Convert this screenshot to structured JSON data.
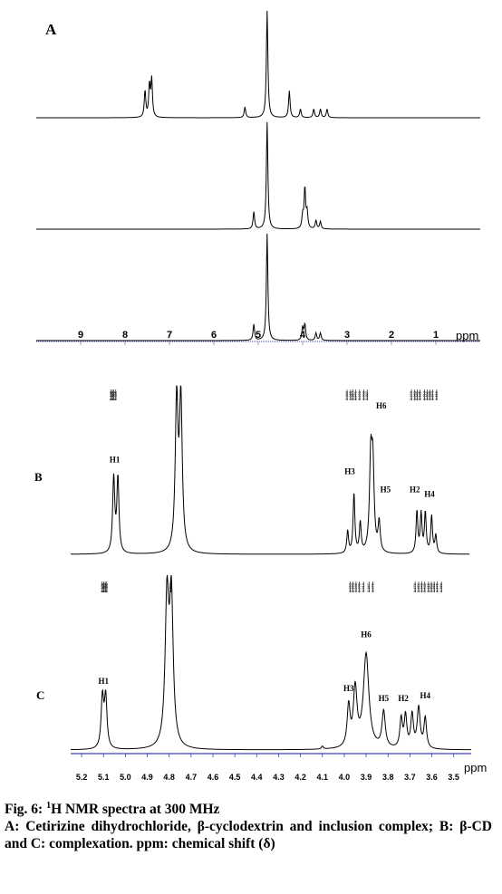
{
  "chart_data": [
    {
      "type": "line",
      "panel": "A",
      "xlabel": "ppm",
      "xlim": [
        10,
        0
      ],
      "x_ticks": [
        9,
        8,
        7,
        6,
        5,
        4,
        3,
        2,
        1
      ],
      "series": [
        {
          "peaks": [
            {
              "ppm": 7.55,
              "h": 0.25
            },
            {
              "ppm": 7.45,
              "h": 0.3
            },
            {
              "ppm": 7.4,
              "h": 0.35
            },
            {
              "ppm": 5.3,
              "h": 0.1
            },
            {
              "ppm": 4.8,
              "h": 1.0
            },
            {
              "ppm": 4.3,
              "h": 0.25
            },
            {
              "ppm": 4.05,
              "h": 0.08
            },
            {
              "ppm": 3.75,
              "h": 0.08
            },
            {
              "ppm": 3.6,
              "h": 0.08
            },
            {
              "ppm": 3.45,
              "h": 0.08
            }
          ]
        },
        {
          "peaks": [
            {
              "ppm": 5.1,
              "h": 0.16
            },
            {
              "ppm": 4.8,
              "h": 1.0
            },
            {
              "ppm": 4.0,
              "h": 0.12
            },
            {
              "ppm": 3.95,
              "h": 0.38
            },
            {
              "ppm": 3.9,
              "h": 0.15
            },
            {
              "ppm": 3.7,
              "h": 0.08
            },
            {
              "ppm": 3.6,
              "h": 0.07
            }
          ]
        },
        {
          "peaks": [
            {
              "ppm": 5.1,
              "h": 0.15
            },
            {
              "ppm": 4.8,
              "h": 1.0
            },
            {
              "ppm": 4.0,
              "h": 0.12
            },
            {
              "ppm": 3.95,
              "h": 0.15
            },
            {
              "ppm": 3.7,
              "h": 0.07
            },
            {
              "ppm": 3.6,
              "h": 0.07
            }
          ]
        }
      ]
    },
    {
      "type": "line",
      "panel": "B",
      "xlim": [
        5.3,
        3.4
      ],
      "peaks": [
        {
          "ppm": 5.095,
          "h": 0.5,
          "w": 0.006
        },
        {
          "ppm": 5.075,
          "h": 0.5,
          "w": 0.006
        },
        {
          "ppm": 4.795,
          "h": 1.0,
          "w": 0.008
        },
        {
          "ppm": 4.775,
          "h": 1.0,
          "w": 0.008
        },
        {
          "ppm": 3.98,
          "h": 0.15,
          "w": 0.005
        },
        {
          "ppm": 3.95,
          "h": 0.4,
          "w": 0.005
        },
        {
          "ppm": 3.92,
          "h": 0.2,
          "w": 0.005
        },
        {
          "ppm": 3.87,
          "h": 0.6,
          "w": 0.007
        },
        {
          "ppm": 3.86,
          "h": 0.55,
          "w": 0.007
        },
        {
          "ppm": 3.83,
          "h": 0.2,
          "w": 0.006
        },
        {
          "ppm": 3.65,
          "h": 0.28,
          "w": 0.005
        },
        {
          "ppm": 3.63,
          "h": 0.26,
          "w": 0.005
        },
        {
          "ppm": 3.61,
          "h": 0.27,
          "w": 0.005
        },
        {
          "ppm": 3.58,
          "h": 0.25,
          "w": 0.005
        },
        {
          "ppm": 3.56,
          "h": 0.12,
          "w": 0.005
        }
      ],
      "annotations": [
        {
          "text": "H1",
          "ppm": 5.09,
          "h": 0.58
        },
        {
          "text": "H3",
          "ppm": 3.97,
          "h": 0.5
        },
        {
          "text": "H6",
          "ppm": 3.82,
          "h": 0.94
        },
        {
          "text": "H5",
          "ppm": 3.8,
          "h": 0.38
        },
        {
          "text": "H2",
          "ppm": 3.66,
          "h": 0.38
        },
        {
          "text": "H4",
          "ppm": 3.59,
          "h": 0.35
        }
      ],
      "peak_labels": [
        5.108,
        5.101,
        5.095,
        5.085,
        4.792,
        3.983,
        3.966,
        3.954,
        3.941,
        3.923,
        3.903,
        3.887,
        3.676,
        3.66,
        3.649,
        3.635,
        3.613,
        3.601,
        3.588,
        3.574,
        3.556
      ]
    },
    {
      "type": "line",
      "panel": "C",
      "xlabel": "ppm",
      "xlim": [
        5.25,
        3.42
      ],
      "x_ticks": [
        5.2,
        5.1,
        5.0,
        4.9,
        4.8,
        4.7,
        4.6,
        4.5,
        4.4,
        4.3,
        4.2,
        4.1,
        4.0,
        3.9,
        3.8,
        3.7,
        3.6,
        3.5
      ],
      "peaks": [
        {
          "ppm": 5.105,
          "h": 0.35,
          "w": 0.007
        },
        {
          "ppm": 5.09,
          "h": 0.35,
          "w": 0.007
        },
        {
          "ppm": 4.81,
          "h": 1.0,
          "w": 0.01
        },
        {
          "ppm": 4.79,
          "h": 1.0,
          "w": 0.01
        },
        {
          "ppm": 4.1,
          "h": 0.02,
          "w": 0.005
        },
        {
          "ppm": 3.98,
          "h": 0.28,
          "w": 0.008
        },
        {
          "ppm": 3.95,
          "h": 0.4,
          "w": 0.01
        },
        {
          "ppm": 3.9,
          "h": 0.65,
          "w": 0.015
        },
        {
          "ppm": 3.82,
          "h": 0.25,
          "w": 0.009
        },
        {
          "ppm": 3.74,
          "h": 0.2,
          "w": 0.007
        },
        {
          "ppm": 3.72,
          "h": 0.22,
          "w": 0.007
        },
        {
          "ppm": 3.69,
          "h": 0.23,
          "w": 0.007
        },
        {
          "ppm": 3.66,
          "h": 0.28,
          "w": 0.008
        },
        {
          "ppm": 3.63,
          "h": 0.21,
          "w": 0.007
        }
      ],
      "annotations": [
        {
          "text": "H1",
          "ppm": 5.1,
          "h": 0.42
        },
        {
          "text": "H3",
          "ppm": 3.98,
          "h": 0.37
        },
        {
          "text": "H6",
          "ppm": 3.9,
          "h": 0.74
        },
        {
          "text": "H5",
          "ppm": 3.82,
          "h": 0.3
        },
        {
          "text": "H2",
          "ppm": 3.73,
          "h": 0.3
        },
        {
          "text": "H4",
          "ppm": 3.63,
          "h": 0.32
        }
      ],
      "peak_labels": [
        5.106,
        5.099,
        5.092,
        5.085,
        4.792,
        3.973,
        3.96,
        3.946,
        3.932,
        3.912,
        3.887,
        3.87,
        3.676,
        3.66,
        3.646,
        3.632,
        3.615,
        3.602,
        3.589,
        3.575,
        3.556
      ]
    }
  ],
  "panel_letters": {
    "a": "A",
    "b": "B",
    "c": "C"
  },
  "axis_a_unit": "ppm",
  "axis_c_unit": "ppm",
  "caption": {
    "line1_prefix": "Fig. 6: ",
    "line1_sup": "1",
    "line1_rest": "H NMR spectra at 300 MHz",
    "body": "A: Cetirizine dihydrochloride, β-cyclodextrin and inclusion complex; B: β-CD and C: complexation. ppm: chemical shift (δ)"
  },
  "colors": {
    "axis_blue": "#3a3fc4",
    "trace": "#000000",
    "axis_gray": "#888888"
  }
}
